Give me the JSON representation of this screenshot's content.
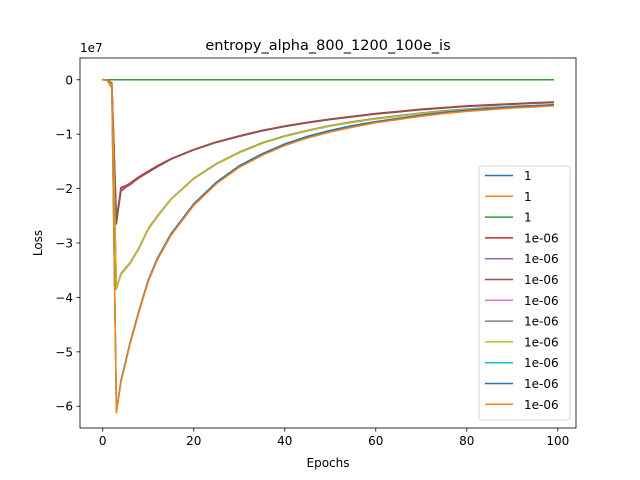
{
  "chart_data": {
    "type": "line",
    "title": "entropy_alpha_800_1200_100e_is",
    "xlabel": "Epochs",
    "ylabel": "Loss",
    "y_offset_label": "1e7",
    "xlim": [
      -5,
      104
    ],
    "ylim": [
      -6.4,
      0.4
    ],
    "x_ticks": [
      0,
      20,
      40,
      60,
      80,
      100
    ],
    "y_ticks": [
      0,
      -1,
      -2,
      -3,
      -4,
      -5,
      -6
    ],
    "y_tick_labels": [
      "0",
      "−1",
      "−2",
      "−3",
      "−4",
      "−5",
      "−6"
    ],
    "grid": false,
    "legend_position": "lower-right",
    "series": [
      {
        "name": "1",
        "color": "#1f77b4",
        "points": [
          [
            0,
            0
          ],
          [
            99,
            0
          ]
        ]
      },
      {
        "name": "1",
        "color": "#ff7f0e",
        "points": [
          [
            0,
            0
          ],
          [
            99,
            0
          ]
        ]
      },
      {
        "name": "1",
        "color": "#2ca02c",
        "points": [
          [
            0,
            0
          ],
          [
            99,
            0
          ]
        ]
      },
      {
        "name": "1e-06",
        "color": "#d62728",
        "points": [
          [
            0,
            0
          ],
          [
            1,
            -0.01
          ],
          [
            2,
            -0.06
          ],
          [
            3,
            -2.55
          ],
          [
            4,
            -1.98
          ],
          [
            5,
            -1.95
          ],
          [
            6,
            -1.9
          ],
          [
            8,
            -1.78
          ],
          [
            10,
            -1.68
          ],
          [
            12,
            -1.58
          ],
          [
            15,
            -1.45
          ],
          [
            20,
            -1.28
          ],
          [
            25,
            -1.14
          ],
          [
            30,
            -1.03
          ],
          [
            35,
            -0.93
          ],
          [
            40,
            -0.85
          ],
          [
            45,
            -0.78
          ],
          [
            50,
            -0.72
          ],
          [
            55,
            -0.67
          ],
          [
            60,
            -0.62
          ],
          [
            65,
            -0.58
          ],
          [
            70,
            -0.54
          ],
          [
            75,
            -0.51
          ],
          [
            80,
            -0.48
          ],
          [
            85,
            -0.46
          ],
          [
            90,
            -0.44
          ],
          [
            95,
            -0.42
          ],
          [
            99,
            -0.41
          ]
        ]
      },
      {
        "name": "1e-06",
        "color": "#9467bd",
        "points": [
          [
            0,
            0
          ],
          [
            1,
            -0.01
          ],
          [
            2,
            -0.06
          ],
          [
            3,
            -2.6
          ],
          [
            4,
            -2.02
          ],
          [
            5,
            -1.97
          ],
          [
            6,
            -1.92
          ],
          [
            8,
            -1.8
          ],
          [
            10,
            -1.7
          ],
          [
            12,
            -1.6
          ],
          [
            15,
            -1.46
          ],
          [
            20,
            -1.29
          ],
          [
            25,
            -1.15
          ],
          [
            30,
            -1.04
          ],
          [
            35,
            -0.94
          ],
          [
            40,
            -0.86
          ],
          [
            45,
            -0.79
          ],
          [
            50,
            -0.73
          ],
          [
            55,
            -0.68
          ],
          [
            60,
            -0.63
          ],
          [
            65,
            -0.59
          ],
          [
            70,
            -0.55
          ],
          [
            75,
            -0.52
          ],
          [
            80,
            -0.49
          ],
          [
            85,
            -0.47
          ],
          [
            90,
            -0.45
          ],
          [
            95,
            -0.43
          ],
          [
            99,
            -0.42
          ]
        ]
      },
      {
        "name": "1e-06",
        "color": "#8c564b",
        "points": [
          [
            0,
            0
          ],
          [
            1,
            -0.01
          ],
          [
            2,
            -0.06
          ],
          [
            3,
            -2.65
          ],
          [
            4,
            -2.05
          ],
          [
            5,
            -1.98
          ],
          [
            6,
            -1.93
          ],
          [
            8,
            -1.8
          ],
          [
            10,
            -1.7
          ],
          [
            12,
            -1.6
          ],
          [
            15,
            -1.46
          ],
          [
            20,
            -1.29
          ],
          [
            25,
            -1.15
          ],
          [
            30,
            -1.04
          ],
          [
            35,
            -0.94
          ],
          [
            40,
            -0.86
          ],
          [
            45,
            -0.79
          ],
          [
            50,
            -0.73
          ],
          [
            55,
            -0.68
          ],
          [
            60,
            -0.63
          ],
          [
            65,
            -0.59
          ],
          [
            70,
            -0.55
          ],
          [
            75,
            -0.52
          ],
          [
            80,
            -0.49
          ],
          [
            85,
            -0.47
          ],
          [
            90,
            -0.45
          ],
          [
            95,
            -0.43
          ],
          [
            99,
            -0.42
          ]
        ]
      },
      {
        "name": "1e-06",
        "color": "#e377c2",
        "points": [
          [
            0,
            0
          ],
          [
            1,
            -0.01
          ],
          [
            2,
            -0.1
          ],
          [
            3,
            -3.85
          ],
          [
            4,
            -3.58
          ],
          [
            5,
            -3.48
          ],
          [
            6,
            -3.38
          ],
          [
            8,
            -3.1
          ],
          [
            10,
            -2.75
          ],
          [
            12,
            -2.52
          ],
          [
            15,
            -2.2
          ],
          [
            20,
            -1.82
          ],
          [
            25,
            -1.55
          ],
          [
            30,
            -1.34
          ],
          [
            35,
            -1.17
          ],
          [
            40,
            -1.04
          ],
          [
            45,
            -0.94
          ],
          [
            50,
            -0.85
          ],
          [
            55,
            -0.78
          ],
          [
            60,
            -0.72
          ],
          [
            65,
            -0.67
          ],
          [
            70,
            -0.62
          ],
          [
            75,
            -0.58
          ],
          [
            80,
            -0.55
          ],
          [
            85,
            -0.52
          ],
          [
            90,
            -0.5
          ],
          [
            95,
            -0.48
          ],
          [
            99,
            -0.47
          ]
        ]
      },
      {
        "name": "1e-06",
        "color": "#7f7f7f",
        "points": [
          [
            0,
            0
          ],
          [
            1,
            -0.01
          ],
          [
            2,
            -0.1
          ],
          [
            3,
            -3.82
          ],
          [
            4,
            -3.56
          ],
          [
            5,
            -3.46
          ],
          [
            6,
            -3.36
          ],
          [
            8,
            -3.08
          ],
          [
            10,
            -2.73
          ],
          [
            12,
            -2.5
          ],
          [
            15,
            -2.19
          ],
          [
            20,
            -1.81
          ],
          [
            25,
            -1.54
          ],
          [
            30,
            -1.33
          ],
          [
            35,
            -1.16
          ],
          [
            40,
            -1.03
          ],
          [
            45,
            -0.93
          ],
          [
            50,
            -0.84
          ],
          [
            55,
            -0.77
          ],
          [
            60,
            -0.71
          ],
          [
            65,
            -0.66
          ],
          [
            70,
            -0.61
          ],
          [
            75,
            -0.57
          ],
          [
            80,
            -0.54
          ],
          [
            85,
            -0.51
          ],
          [
            90,
            -0.49
          ],
          [
            95,
            -0.47
          ],
          [
            99,
            -0.46
          ]
        ]
      },
      {
        "name": "1e-06",
        "color": "#bcbd22",
        "points": [
          [
            0,
            0
          ],
          [
            1,
            -0.01
          ],
          [
            2,
            -0.1
          ],
          [
            3,
            -3.84
          ],
          [
            4,
            -3.57
          ],
          [
            5,
            -3.47
          ],
          [
            6,
            -3.37
          ],
          [
            8,
            -3.09
          ],
          [
            10,
            -2.74
          ],
          [
            12,
            -2.51
          ],
          [
            15,
            -2.2
          ],
          [
            20,
            -1.82
          ],
          [
            25,
            -1.55
          ],
          [
            30,
            -1.34
          ],
          [
            35,
            -1.17
          ],
          [
            40,
            -1.04
          ],
          [
            45,
            -0.94
          ],
          [
            50,
            -0.85
          ],
          [
            55,
            -0.78
          ],
          [
            60,
            -0.72
          ],
          [
            65,
            -0.67
          ],
          [
            70,
            -0.62
          ],
          [
            75,
            -0.58
          ],
          [
            80,
            -0.55
          ],
          [
            85,
            -0.52
          ],
          [
            90,
            -0.5
          ],
          [
            95,
            -0.48
          ],
          [
            99,
            -0.47
          ]
        ]
      },
      {
        "name": "1e-06",
        "color": "#17becf",
        "points": [
          [
            0,
            0
          ],
          [
            1,
            -0.01
          ],
          [
            2,
            -0.15
          ],
          [
            3,
            -6.1
          ],
          [
            4,
            -5.55
          ],
          [
            5,
            -5.2
          ],
          [
            6,
            -4.85
          ],
          [
            8,
            -4.25
          ],
          [
            10,
            -3.7
          ],
          [
            12,
            -3.3
          ],
          [
            15,
            -2.85
          ],
          [
            20,
            -2.3
          ],
          [
            25,
            -1.9
          ],
          [
            30,
            -1.6
          ],
          [
            35,
            -1.38
          ],
          [
            40,
            -1.2
          ],
          [
            45,
            -1.06
          ],
          [
            50,
            -0.95
          ],
          [
            55,
            -0.86
          ],
          [
            60,
            -0.78
          ],
          [
            65,
            -0.72
          ],
          [
            70,
            -0.66
          ],
          [
            75,
            -0.61
          ],
          [
            80,
            -0.57
          ],
          [
            85,
            -0.54
          ],
          [
            90,
            -0.51
          ],
          [
            95,
            -0.49
          ],
          [
            99,
            -0.47
          ]
        ]
      },
      {
        "name": "1e-06",
        "color": "#1f77b4",
        "points": [
          [
            0,
            0
          ],
          [
            1,
            -0.01
          ],
          [
            2,
            -0.15
          ],
          [
            3,
            -6.08
          ],
          [
            4,
            -5.53
          ],
          [
            5,
            -5.18
          ],
          [
            6,
            -4.83
          ],
          [
            8,
            -4.23
          ],
          [
            10,
            -3.68
          ],
          [
            12,
            -3.28
          ],
          [
            15,
            -2.83
          ],
          [
            20,
            -2.28
          ],
          [
            25,
            -1.88
          ],
          [
            30,
            -1.58
          ],
          [
            35,
            -1.36
          ],
          [
            40,
            -1.18
          ],
          [
            45,
            -1.04
          ],
          [
            50,
            -0.93
          ],
          [
            55,
            -0.84
          ],
          [
            60,
            -0.77
          ],
          [
            65,
            -0.71
          ],
          [
            70,
            -0.65
          ],
          [
            75,
            -0.6
          ],
          [
            80,
            -0.56
          ],
          [
            85,
            -0.53
          ],
          [
            90,
            -0.5
          ],
          [
            95,
            -0.48
          ],
          [
            99,
            -0.46
          ]
        ]
      },
      {
        "name": "1e-06",
        "color": "#ff7f0e",
        "points": [
          [
            0,
            0
          ],
          [
            1,
            -0.01
          ],
          [
            2,
            -0.15
          ],
          [
            3,
            -6.12
          ],
          [
            4,
            -5.56
          ],
          [
            5,
            -5.21
          ],
          [
            6,
            -4.86
          ],
          [
            8,
            -4.26
          ],
          [
            10,
            -3.71
          ],
          [
            12,
            -3.31
          ],
          [
            15,
            -2.86
          ],
          [
            20,
            -2.31
          ],
          [
            25,
            -1.91
          ],
          [
            30,
            -1.61
          ],
          [
            35,
            -1.39
          ],
          [
            40,
            -1.21
          ],
          [
            45,
            -1.07
          ],
          [
            50,
            -0.96
          ],
          [
            55,
            -0.87
          ],
          [
            60,
            -0.79
          ],
          [
            65,
            -0.73
          ],
          [
            70,
            -0.67
          ],
          [
            75,
            -0.62
          ],
          [
            80,
            -0.58
          ],
          [
            85,
            -0.55
          ],
          [
            90,
            -0.52
          ],
          [
            95,
            -0.5
          ],
          [
            99,
            -0.48
          ]
        ]
      }
    ]
  }
}
